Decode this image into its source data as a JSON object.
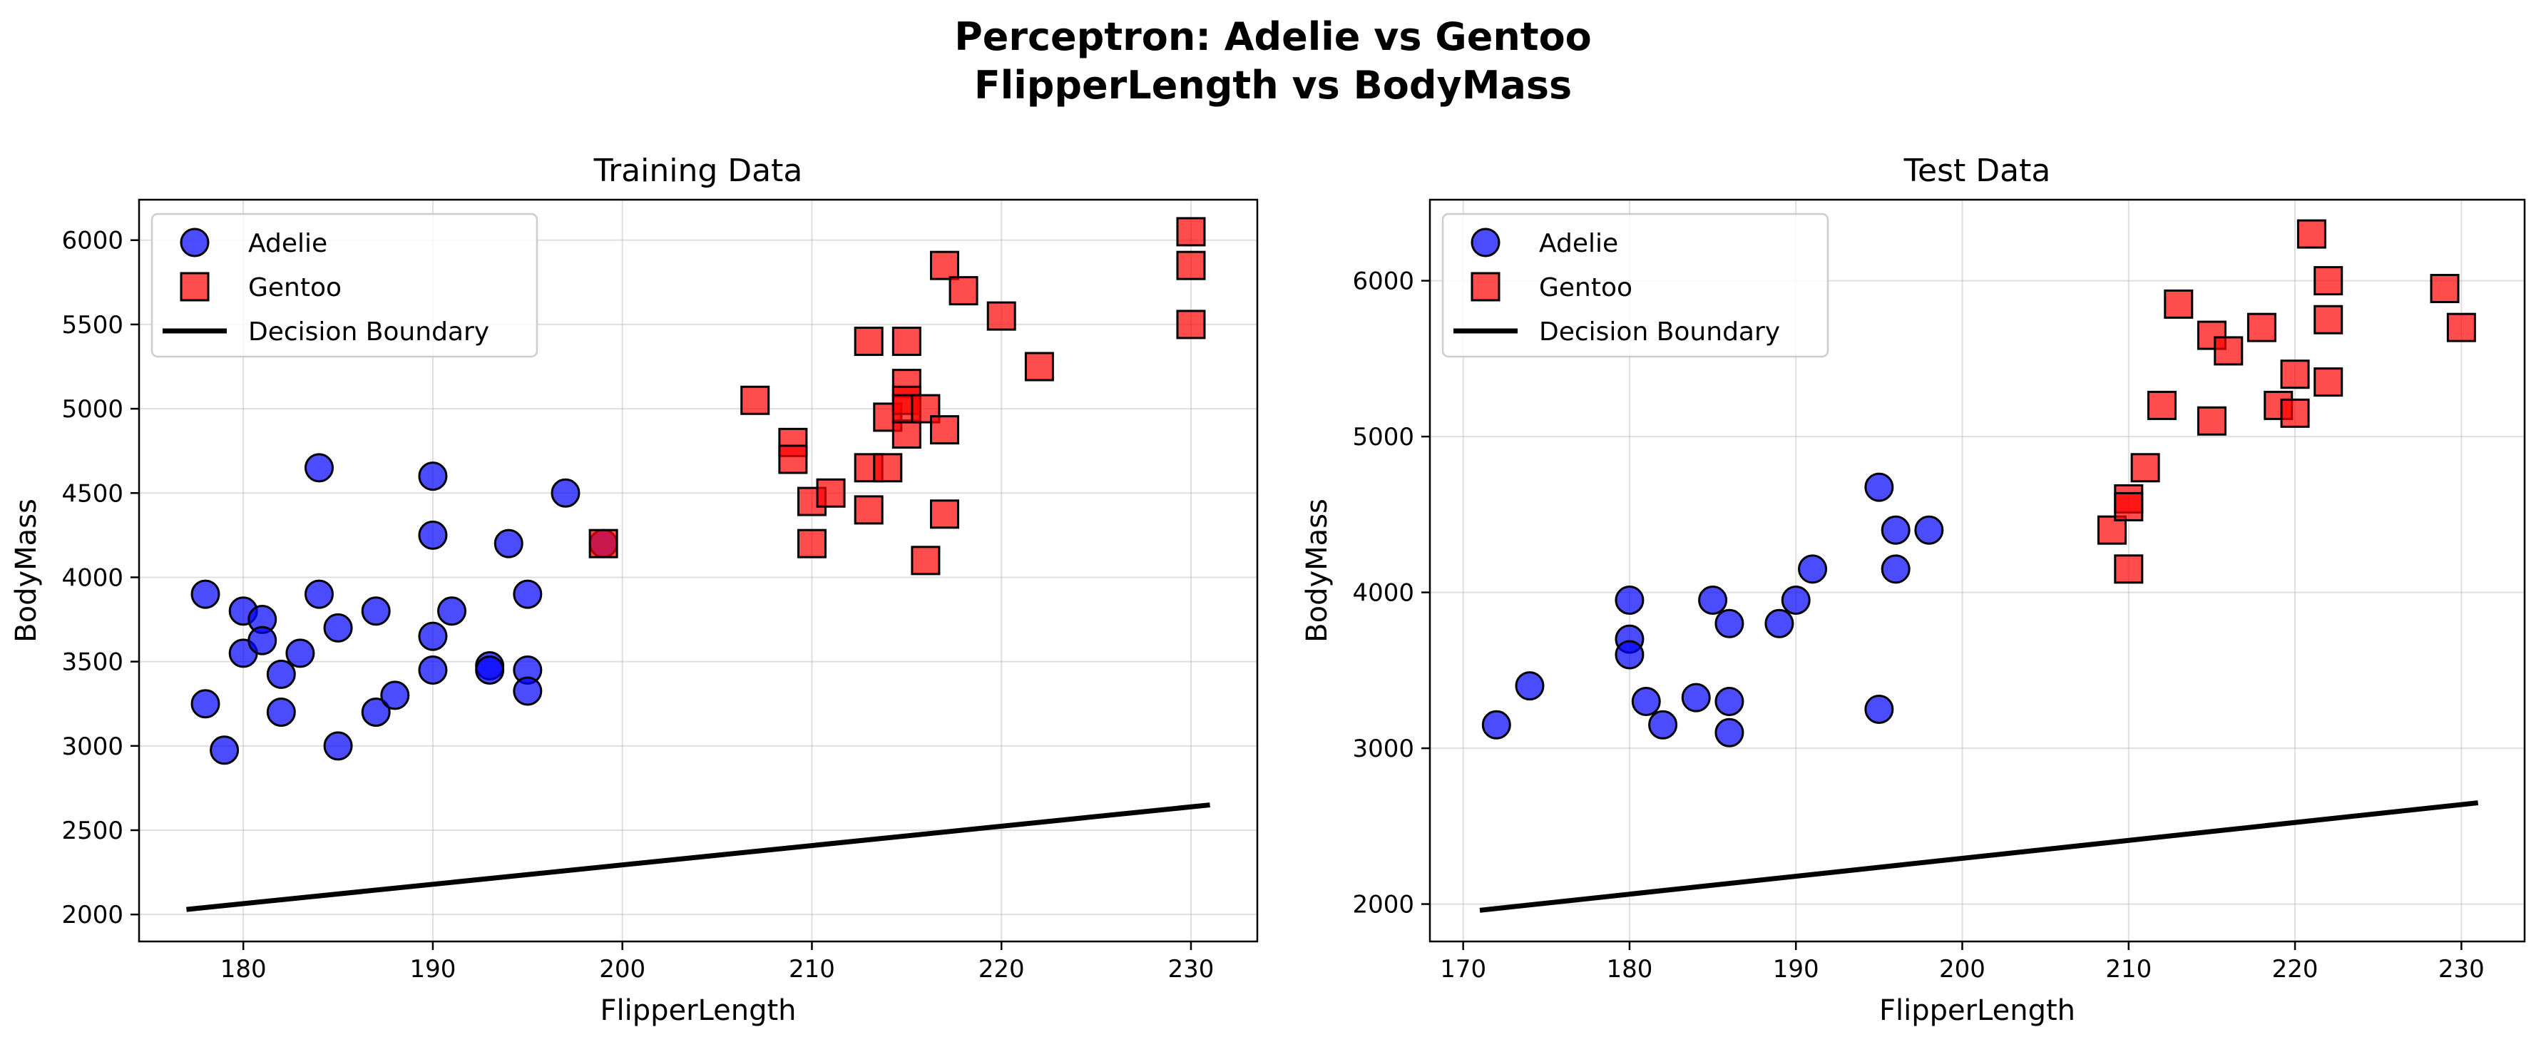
{
  "figure": {
    "title_line1": "Perceptron: Adelie vs Gentoo",
    "title_line2": "FlipperLength vs BodyMass"
  },
  "colors": {
    "adelie": "#0000ff",
    "gentoo": "#ff0000",
    "boundary": "#000000",
    "marker_edge": "#000000"
  },
  "chart_data": [
    {
      "type": "scatter",
      "title": "Training Data",
      "xlabel": "FlipperLength",
      "ylabel": "BodyMass",
      "xlim": [
        174.5,
        233.5
      ],
      "ylim": [
        1840,
        6240
      ],
      "xticks": [
        180,
        190,
        200,
        210,
        220,
        230
      ],
      "yticks": [
        2000,
        2500,
        3000,
        3500,
        4000,
        4500,
        5000,
        5500,
        6000
      ],
      "grid": true,
      "legend_position": "top-left",
      "legend": [
        "Adelie",
        "Gentoo",
        "Decision Boundary"
      ],
      "series": [
        {
          "name": "Adelie",
          "marker": "circle",
          "points": [
            [
              178,
              3900
            ],
            [
              178,
              3250
            ],
            [
              179,
              2975
            ],
            [
              180,
              3800
            ],
            [
              180,
              3550
            ],
            [
              181,
              3750
            ],
            [
              181,
              3625
            ],
            [
              182,
              3425
            ],
            [
              182,
              3200
            ],
            [
              183,
              3550
            ],
            [
              184,
              4650
            ],
            [
              184,
              3900
            ],
            [
              185,
              3700
            ],
            [
              185,
              3000
            ],
            [
              187,
              3800
            ],
            [
              187,
              3200
            ],
            [
              188,
              3300
            ],
            [
              190,
              4600
            ],
            [
              190,
              4250
            ],
            [
              190,
              3650
            ],
            [
              190,
              3450
            ],
            [
              191,
              3800
            ],
            [
              193,
              3475
            ],
            [
              193,
              3450
            ],
            [
              194,
              4200
            ],
            [
              195,
              3900
            ],
            [
              195,
              3450
            ],
            [
              195,
              3325
            ],
            [
              197,
              4500
            ],
            [
              199,
              4200
            ]
          ]
        },
        {
          "name": "Gentoo",
          "marker": "square",
          "points": [
            [
              199,
              4200
            ],
            [
              207,
              5050
            ],
            [
              209,
              4800
            ],
            [
              209,
              4700
            ],
            [
              210,
              4450
            ],
            [
              210,
              4200
            ],
            [
              211,
              4500
            ],
            [
              213,
              5400
            ],
            [
              213,
              4650
            ],
            [
              213,
              4400
            ],
            [
              214,
              4950
            ],
            [
              214,
              4650
            ],
            [
              215,
              5400
            ],
            [
              215,
              5150
            ],
            [
              215,
              5050
            ],
            [
              215,
              4850
            ],
            [
              215,
              5000
            ],
            [
              216,
              5000
            ],
            [
              216,
              4100
            ],
            [
              217,
              5850
            ],
            [
              217,
              4875
            ],
            [
              217,
              4375
            ],
            [
              218,
              5700
            ],
            [
              220,
              5550
            ],
            [
              222,
              5250
            ],
            [
              230,
              6050
            ],
            [
              230,
              5850
            ],
            [
              230,
              5500
            ]
          ]
        },
        {
          "name": "Decision Boundary",
          "marker": "line",
          "points": [
            [
              177,
              2030
            ],
            [
              231,
              2650
            ]
          ]
        }
      ]
    },
    {
      "type": "scatter",
      "title": "Test Data",
      "xlabel": "FlipperLength",
      "ylabel": "BodyMass",
      "xlim": [
        168,
        233.8
      ],
      "ylim": [
        1760,
        6520
      ],
      "xticks": [
        170,
        180,
        190,
        200,
        210,
        220,
        230
      ],
      "yticks": [
        2000,
        3000,
        4000,
        5000,
        6000
      ],
      "grid": true,
      "legend_position": "top-left",
      "legend": [
        "Adelie",
        "Gentoo",
        "Decision Boundary"
      ],
      "series": [
        {
          "name": "Adelie",
          "marker": "circle",
          "points": [
            [
              172,
              3150
            ],
            [
              174,
              3400
            ],
            [
              180,
              3950
            ],
            [
              180,
              3700
            ],
            [
              180,
              3600
            ],
            [
              181,
              3300
            ],
            [
              182,
              3150
            ],
            [
              184,
              3325
            ],
            [
              185,
              3950
            ],
            [
              186,
              3800
            ],
            [
              186,
              3300
            ],
            [
              186,
              3100
            ],
            [
              189,
              3800
            ],
            [
              190,
              3950
            ],
            [
              191,
              4150
            ],
            [
              195,
              4675
            ],
            [
              195,
              3250
            ],
            [
              196,
              4400
            ],
            [
              196,
              4150
            ],
            [
              198,
              4400
            ]
          ]
        },
        {
          "name": "Gentoo",
          "marker": "square",
          "points": [
            [
              209,
              4400
            ],
            [
              210,
              4600
            ],
            [
              210,
              4550
            ],
            [
              210,
              4150
            ],
            [
              211,
              4800
            ],
            [
              212,
              5200
            ],
            [
              213,
              5850
            ],
            [
              215,
              5650
            ],
            [
              215,
              5100
            ],
            [
              216,
              5550
            ],
            [
              218,
              5700
            ],
            [
              219,
              5200
            ],
            [
              220,
              5400
            ],
            [
              220,
              5150
            ],
            [
              221,
              6300
            ],
            [
              222,
              6000
            ],
            [
              222,
              5750
            ],
            [
              222,
              5350
            ],
            [
              229,
              5950
            ],
            [
              230,
              5700
            ]
          ]
        },
        {
          "name": "Decision Boundary",
          "marker": "line",
          "points": [
            [
              171,
              1960
            ],
            [
              231,
              2650
            ]
          ]
        }
      ]
    }
  ]
}
